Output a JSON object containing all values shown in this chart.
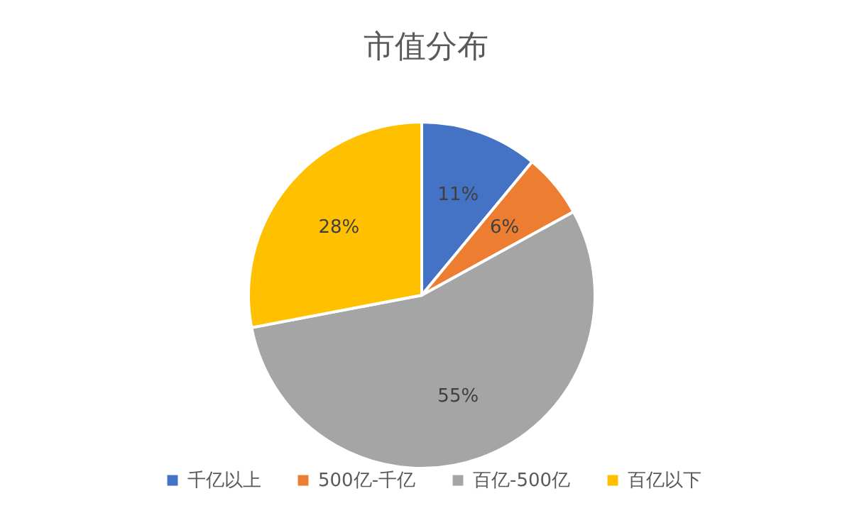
{
  "chart_data": {
    "type": "pie",
    "title": "市值分布",
    "categories": [
      "千亿以上",
      "500亿-千亿",
      "百亿-500亿",
      "百亿以下"
    ],
    "values": [
      11,
      6,
      55,
      28
    ],
    "colors": [
      "#4472c4",
      "#ed7d31",
      "#a5a5a5",
      "#ffc000"
    ],
    "value_labels": [
      "11%",
      "6%",
      "55%",
      "28%"
    ],
    "legend": "bottom"
  }
}
